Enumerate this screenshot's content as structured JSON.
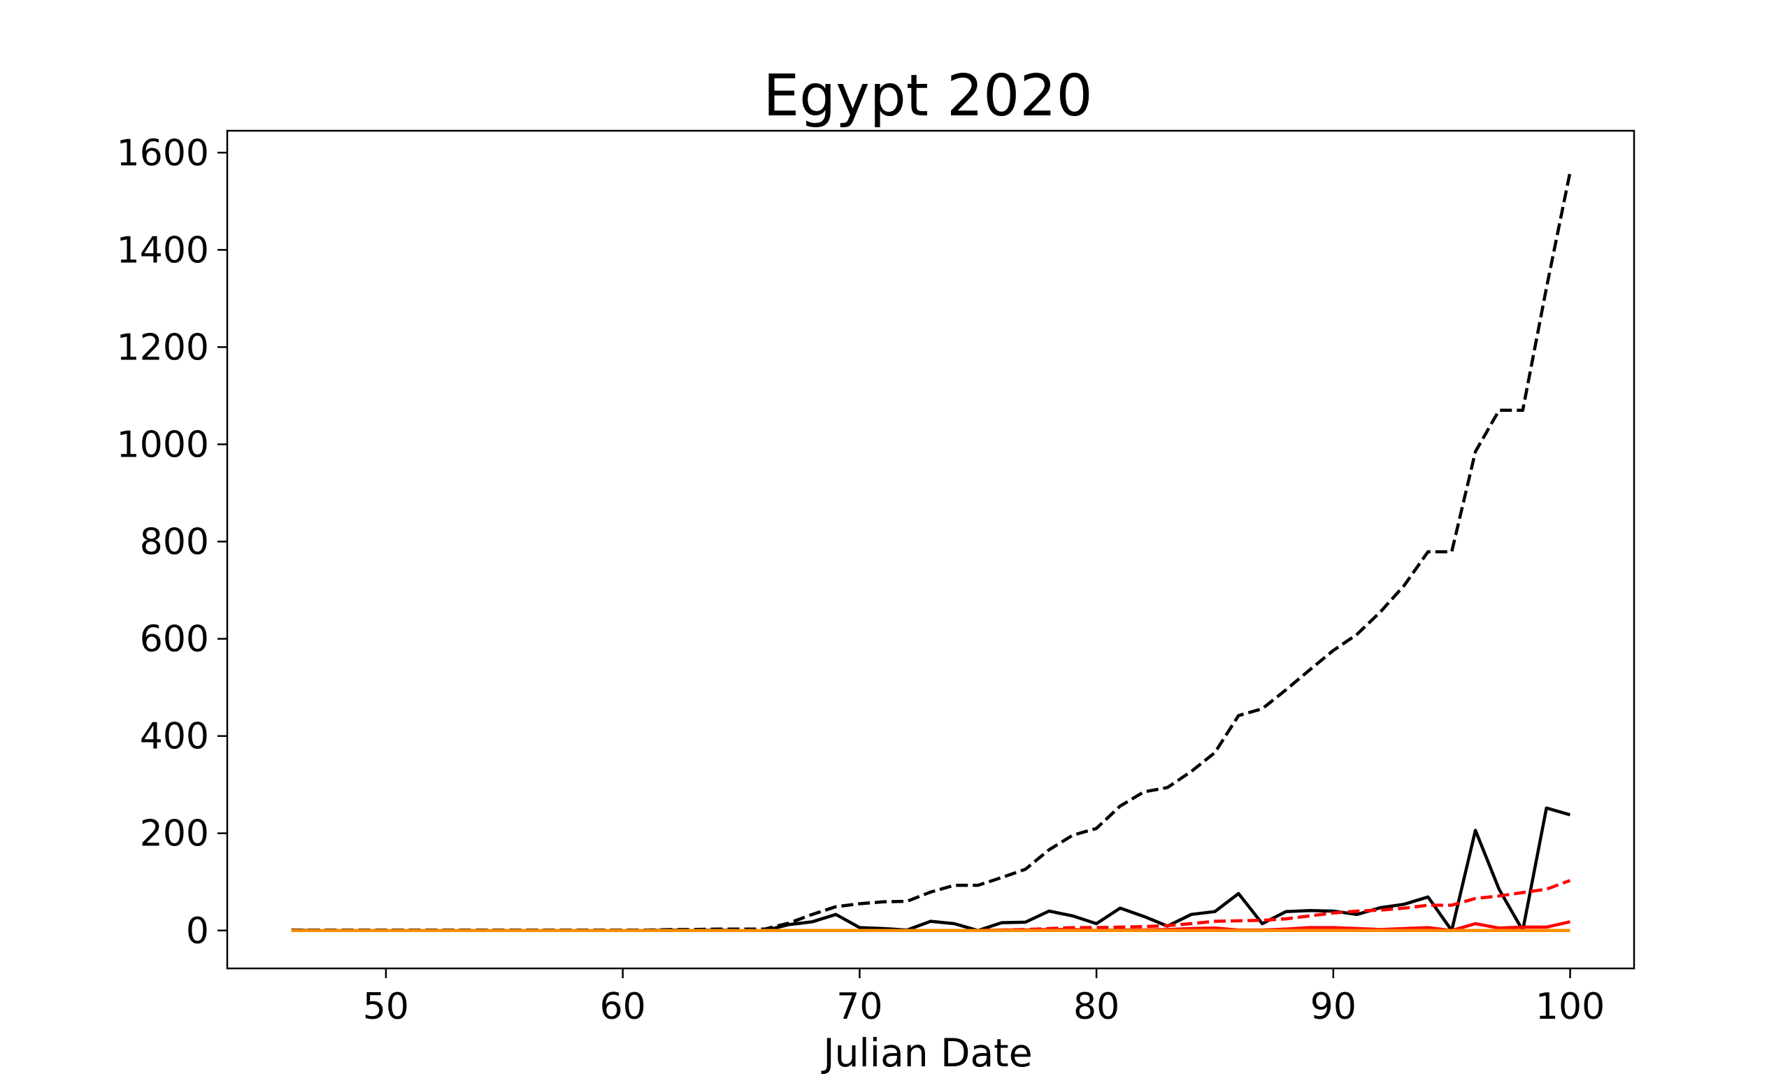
{
  "chart_data": {
    "type": "line",
    "title": "Egypt 2020",
    "xlabel": "Julian Date",
    "ylabel": "",
    "xlim": [
      43.3,
      102.7
    ],
    "ylim": [
      -78,
      1645
    ],
    "xticks": [
      50,
      60,
      70,
      80,
      90,
      100
    ],
    "yticks": [
      0,
      200,
      400,
      600,
      800,
      1000,
      1200,
      1400,
      1600
    ],
    "x": [
      46,
      47,
      48,
      49,
      50,
      51,
      52,
      53,
      54,
      55,
      56,
      57,
      58,
      59,
      60,
      61,
      62,
      63,
      64,
      65,
      66,
      67,
      68,
      69,
      70,
      71,
      72,
      73,
      74,
      75,
      76,
      77,
      78,
      79,
      80,
      81,
      82,
      83,
      84,
      85,
      86,
      87,
      88,
      89,
      90,
      91,
      92,
      93,
      94,
      95,
      96,
      97,
      98,
      99,
      100
    ],
    "series": [
      {
        "color": "#000000",
        "dash": true,
        "values": [
          1,
          1,
          1,
          1,
          1,
          1,
          1,
          1,
          1,
          1,
          1,
          1,
          1,
          1,
          1,
          1,
          2,
          2,
          3,
          3,
          3,
          15,
          33,
          49,
          55,
          59,
          60,
          79,
          93,
          93,
          109,
          126,
          166,
          196,
          210,
          256,
          285,
          294,
          327,
          366,
          442,
          456,
          495,
          536,
          576,
          609,
          656,
          710,
          779,
          779,
          985,
          1070,
          1070,
          1322,
          1560
        ]
      },
      {
        "color": "#000000",
        "dash": false,
        "values": [
          1,
          0,
          0,
          0,
          0,
          0,
          0,
          0,
          0,
          0,
          0,
          0,
          0,
          0,
          0,
          0,
          1,
          0,
          1,
          0,
          0,
          12,
          18,
          33,
          6,
          4,
          1,
          19,
          14,
          0,
          16,
          17,
          40,
          30,
          14,
          46,
          29,
          9,
          33,
          39,
          76,
          14,
          39,
          41,
          40,
          33,
          47,
          54,
          69,
          0,
          206,
          85,
          0,
          252,
          238
        ]
      },
      {
        "color": "#ff0000",
        "dash": true,
        "values": [
          0,
          0,
          0,
          0,
          0,
          0,
          0,
          0,
          0,
          0,
          0,
          0,
          0,
          0,
          0,
          0,
          0,
          0,
          0,
          0,
          0,
          0,
          0,
          0,
          0,
          0,
          0,
          0,
          0,
          0,
          1,
          2,
          4,
          6,
          6,
          7,
          8,
          10,
          14,
          19,
          20,
          21,
          24,
          30,
          36,
          40,
          42,
          46,
          52,
          52,
          66,
          71,
          78,
          85,
          103
        ]
      },
      {
        "color": "#ff0000",
        "dash": false,
        "values": [
          0,
          0,
          0,
          0,
          0,
          0,
          0,
          0,
          0,
          0,
          0,
          0,
          0,
          0,
          0,
          0,
          0,
          0,
          0,
          0,
          0,
          0,
          0,
          0,
          0,
          0,
          0,
          0,
          0,
          0,
          1,
          1,
          2,
          2,
          0,
          1,
          1,
          2,
          4,
          5,
          1,
          1,
          3,
          6,
          6,
          4,
          2,
          4,
          6,
          0,
          14,
          5,
          7,
          7,
          18
        ]
      },
      {
        "color": "#ff8c00",
        "dash": false,
        "values": [
          0,
          0,
          0,
          0,
          0,
          0,
          0,
          0,
          0,
          0,
          0,
          0,
          0,
          0,
          0,
          0,
          0,
          0,
          0,
          0,
          0,
          0,
          0,
          0,
          0,
          0,
          0,
          0,
          0,
          0,
          0,
          0,
          0,
          0,
          0,
          0,
          0,
          0,
          0,
          0,
          0,
          0,
          0,
          0,
          0,
          0,
          0,
          0,
          0,
          0,
          0,
          0,
          0,
          0,
          0
        ]
      }
    ]
  }
}
